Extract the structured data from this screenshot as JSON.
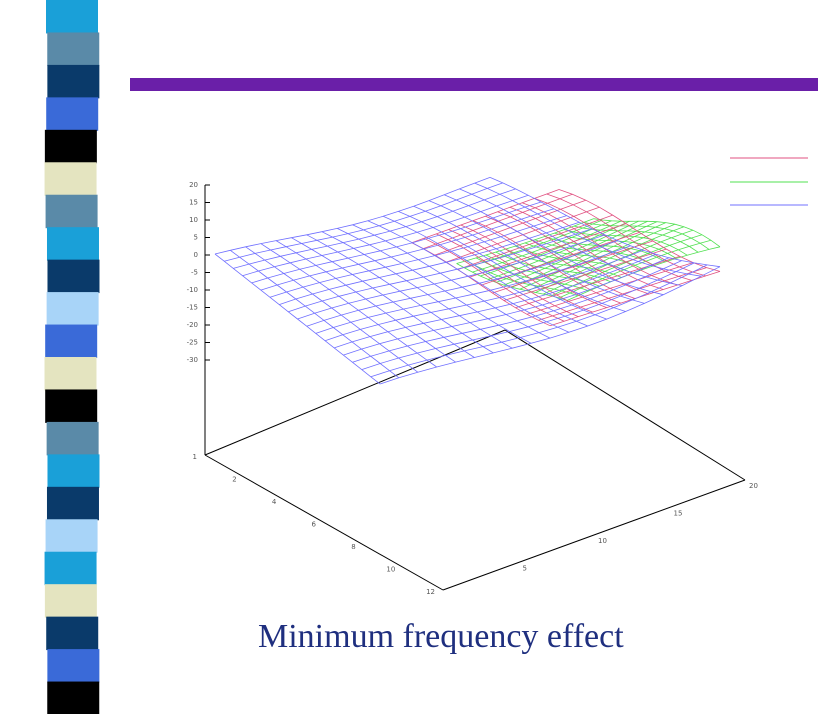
{
  "slide": {
    "caption": "Minimum frequency effect"
  },
  "plot": {
    "z_ticks": [
      "20",
      "15",
      "10",
      "5",
      "0",
      "-5",
      "-10",
      "-15",
      "-20",
      "-25",
      "-30"
    ],
    "left_axis_ticks": [
      "1",
      "2",
      "4",
      "6",
      "8",
      "10",
      "12"
    ],
    "right_axis_ticks": [
      "5",
      "10",
      "15",
      "20"
    ]
  }
}
